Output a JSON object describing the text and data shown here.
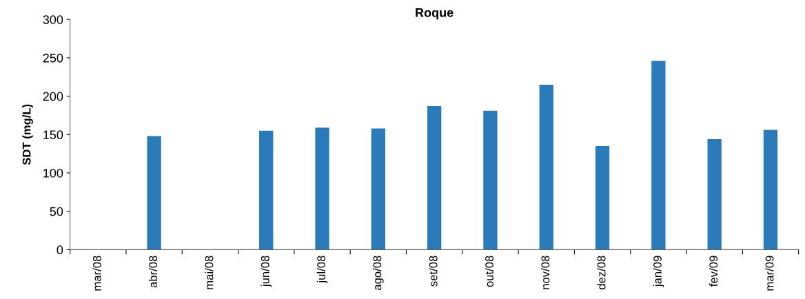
{
  "chart_data": {
    "type": "bar",
    "title": "Roque",
    "ylabel": "SDT (mg/L)",
    "categories": [
      "mar/08",
      "abr/08",
      "mai/08",
      "jun/08",
      "jul/08",
      "ago/08",
      "set/08",
      "out/08",
      "nov/08",
      "dez/08",
      "jan/09",
      "fev/09",
      "mar/09"
    ],
    "values": [
      null,
      148,
      null,
      155,
      159,
      158,
      187,
      181,
      215,
      135,
      246,
      144,
      156
    ],
    "color": "#2b7bba",
    "ylim": [
      0,
      300
    ],
    "yticks": [
      0,
      50,
      100,
      150,
      200,
      250,
      300
    ],
    "grid": false,
    "legend": false
  }
}
